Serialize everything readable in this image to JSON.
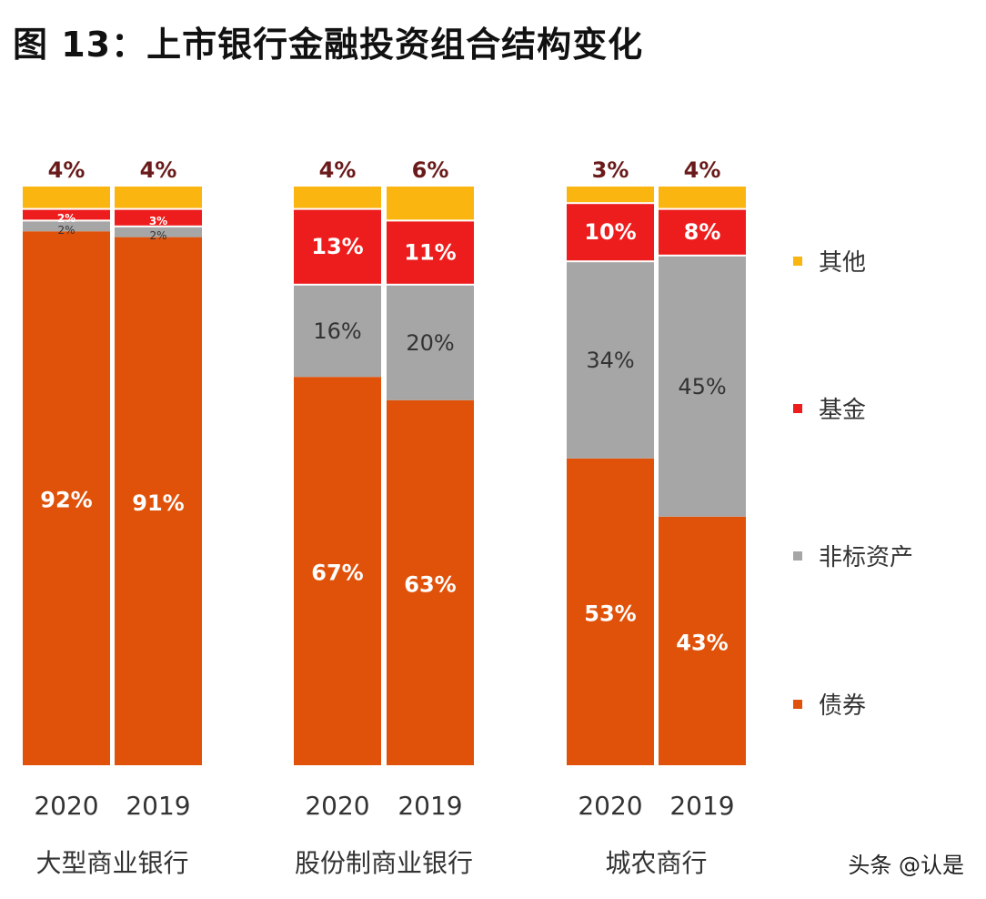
{
  "title": "图 13：上市银行金融投资组合结构变化",
  "watermark": "头条 @认是",
  "chart_data": {
    "type": "bar",
    "stacked": true,
    "percent": true,
    "title": "图 13：上市银行金融投资组合结构变化",
    "groups": [
      "大型商业银行",
      "股份制商业银行",
      "城农商行"
    ],
    "categories": [
      "2020",
      "2019",
      "2020",
      "2019",
      "2020",
      "2019"
    ],
    "series": [
      {
        "name": "债券",
        "color": "#e0520a",
        "values": [
          92,
          91,
          67,
          63,
          53,
          43
        ]
      },
      {
        "name": "非标资产",
        "color": "#a6a6a6",
        "values": [
          2,
          2,
          16,
          20,
          34,
          45
        ]
      },
      {
        "name": "基金",
        "color": "#ee1d1d",
        "values": [
          2,
          3,
          13,
          11,
          10,
          8
        ]
      },
      {
        "name": "其他",
        "color": "#fbb511",
        "values": [
          4,
          4,
          4,
          6,
          3,
          4
        ]
      }
    ],
    "legend_order": [
      "其他",
      "基金",
      "非标资产",
      "债券"
    ],
    "legend_position": "right",
    "ylim": [
      0,
      100
    ],
    "grid": false
  }
}
